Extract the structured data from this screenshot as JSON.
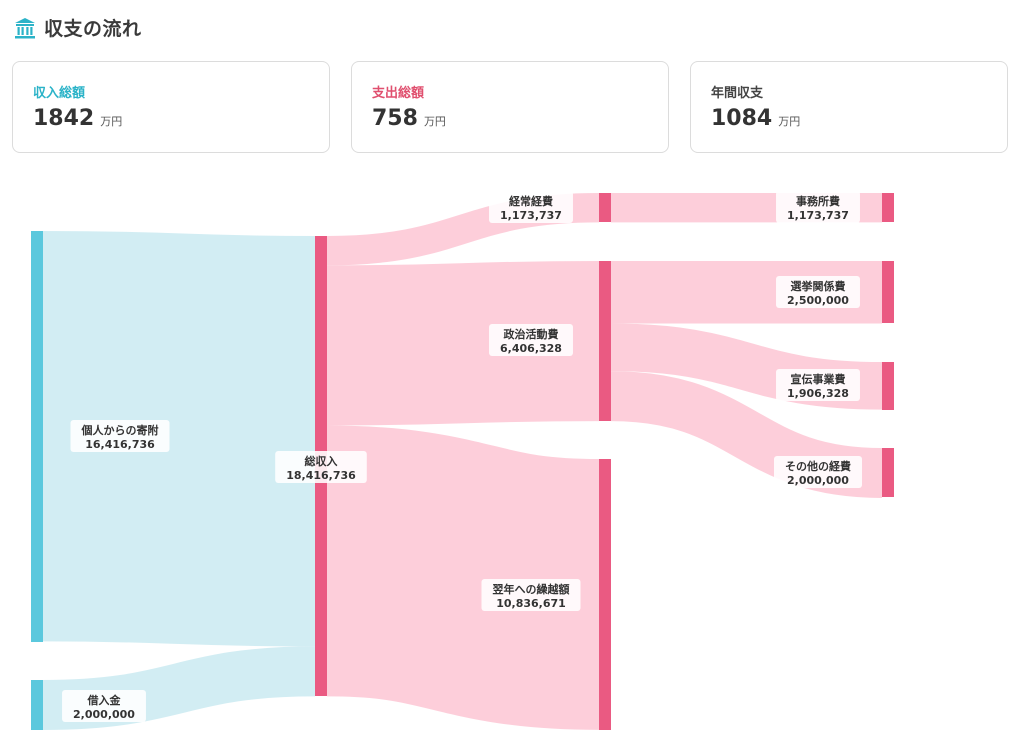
{
  "header": {
    "title": "収支の流れ",
    "icon": "bank-icon"
  },
  "cards": [
    {
      "label": "収入総額",
      "value": "1842",
      "unit": "万円",
      "color": "#2bb3c8"
    },
    {
      "label": "支出総額",
      "value": "758",
      "unit": "万円",
      "color": "#e0506f"
    },
    {
      "label": "年間収支",
      "value": "1084",
      "unit": "万円",
      "color": "#444444"
    }
  ],
  "colors": {
    "income": "#5bc8dd",
    "income_link": "#d0ecf2",
    "expense": "#ea5a82",
    "expense_link": "#fdcbd8"
  },
  "chart_data": {
    "type": "sankey",
    "nodes": [
      {
        "id": "kojin",
        "name": "個人からの寄附",
        "value": "16,416,736",
        "column": 0
      },
      {
        "id": "kariire",
        "name": "借入金",
        "value": "2,000,000",
        "column": 0
      },
      {
        "id": "soshunyu",
        "name": "総収入",
        "value": "18,416,736",
        "column": 1
      },
      {
        "id": "keijo",
        "name": "経常経費",
        "value": "1,173,737",
        "column": 2
      },
      {
        "id": "seiji",
        "name": "政治活動費",
        "value": "6,406,328",
        "column": 2
      },
      {
        "id": "yokunen",
        "name": "翌年への繰越額",
        "value": "10,836,671",
        "column": 2
      },
      {
        "id": "jimusho",
        "name": "事務所費",
        "value": "1,173,737",
        "column": 3
      },
      {
        "id": "senkyo",
        "name": "選挙関係費",
        "value": "2,500,000",
        "column": 3
      },
      {
        "id": "senden",
        "name": "宣伝事業費",
        "value": "1,906,328",
        "column": 3
      },
      {
        "id": "sonota",
        "name": "その他の経費",
        "value": "2,000,000",
        "column": 3
      }
    ],
    "links": [
      {
        "source": "kojin",
        "target": "soshunyu",
        "value": 16416736
      },
      {
        "source": "kariire",
        "target": "soshunyu",
        "value": 2000000
      },
      {
        "source": "soshunyu",
        "target": "keijo",
        "value": 1173737
      },
      {
        "source": "soshunyu",
        "target": "seiji",
        "value": 6406328
      },
      {
        "source": "soshunyu",
        "target": "yokunen",
        "value": 10836671
      },
      {
        "source": "keijo",
        "target": "jimusho",
        "value": 1173737
      },
      {
        "source": "seiji",
        "target": "senkyo",
        "value": 2500000
      },
      {
        "source": "seiji",
        "target": "senden",
        "value": 1906328
      },
      {
        "source": "seiji",
        "target": "sonota",
        "value": 2000000
      }
    ]
  }
}
